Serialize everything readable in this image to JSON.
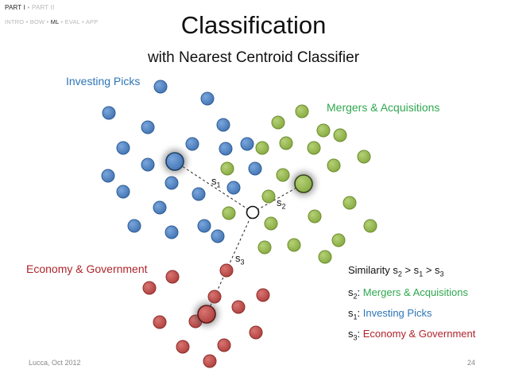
{
  "nav": {
    "part_active": "PART I",
    "sep": "•",
    "part_inactive": "PART II",
    "sections": [
      {
        "label": "INTRO",
        "active": false
      },
      {
        "label": "BOW",
        "active": false
      },
      {
        "label": "ML",
        "active": true
      },
      {
        "label": "EVAL",
        "active": false
      },
      {
        "label": "APP",
        "active": false
      }
    ]
  },
  "title": "Classification",
  "subtitle": "with Nearest Centroid Classifier",
  "clusters": {
    "investing": "Investing Picks",
    "mergers": "Mergers & Acquisitions",
    "economy": "Economy & Government"
  },
  "distances": {
    "s1_base": "s",
    "s1_sub": "1",
    "s2_base": "s",
    "s2_sub": "2",
    "s3_base": "s",
    "s3_sub": "3"
  },
  "legend": {
    "sim_prefix": "Similarity s",
    "s2_sub": "2",
    "gt1": " > s",
    "s1_sub": "1",
    "gt2": " > s",
    "s3_sub": "3",
    "row_s": "s",
    "row_colon": ": ",
    "mergers": "Mergers & Acquisitions",
    "investing": "Investing Picks",
    "economy": "Economy & Government"
  },
  "footer": {
    "author": "Lucca, Oct 2012",
    "page": "24"
  },
  "colors": {
    "blue": "#4a7fc0",
    "blue_edge": "#2e5d96",
    "green": "#93b84a",
    "green_edge": "#6c8c2e",
    "red": "#bd4a47",
    "red_edge": "#8b2f2d"
  }
}
